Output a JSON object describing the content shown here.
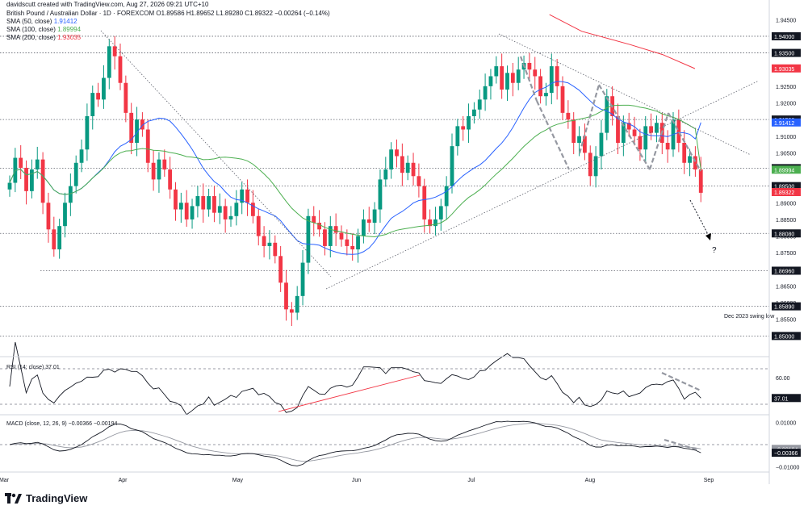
{
  "header": {
    "created": "davidscutt created with TradingView.com, Aug 27, 2026 09:21 UTC+10",
    "symbol": "British Pound / Australian Dollar · 1D · FOREXCOM",
    "ohlc": "O1.89586 H1.89652 L1.89280 C1.89322 −0.00264 (−0.14%)",
    "sma50_label": "SMA (50, close)",
    "sma50_value": "1.91412",
    "sma100_label": "SMA (100, close)",
    "sma100_value": "1.89994",
    "sma200_label": "SMA (200, close)",
    "sma200_value": "1.93035"
  },
  "brand": {
    "name": "TradingView"
  },
  "colors": {
    "up": "#089981",
    "down": "#f23645",
    "sma50": "#2962ff",
    "sma100": "#4caf50",
    "sma200": "#f23645",
    "rsi": "#131722",
    "macd": "#131722",
    "signal": "#9598a1"
  },
  "chart_data": {
    "type": "candlestick",
    "title": "British Pound / Australian Dollar · 1D · FOREXCOM",
    "ylim": [
      1.845,
      1.9475
    ],
    "y_ticks": [
      1.85,
      1.855,
      1.86,
      1.865,
      1.87,
      1.875,
      1.88,
      1.885,
      1.89,
      1.895,
      1.9,
      1.905,
      1.91,
      1.915,
      1.92,
      1.925,
      1.93,
      1.935,
      1.94,
      1.945
    ],
    "y_tick_labels": [
      "1.85000",
      "1.85500",
      "1.86000",
      "1.86500",
      "1.87000",
      "1.87500",
      "1.88000",
      "1.88500",
      "1.89000",
      "1.89500",
      "1.90000",
      "1.90500",
      "1.91000",
      "1.91500",
      "1.92000",
      "1.92500",
      "1.93000",
      "1.93500",
      "1.94000",
      "1.94500"
    ],
    "x_tick_labels": [
      {
        "label": "Mar",
        "date": "2026-03-01"
      },
      {
        "label": "Apr",
        "date": "2026-04-01"
      },
      {
        "label": "May",
        "date": "2026-05-01"
      },
      {
        "label": "Jun",
        "date": "2026-06-01"
      },
      {
        "label": "Jul",
        "date": "2026-07-01"
      },
      {
        "label": "Aug",
        "date": "2026-08-01"
      },
      {
        "label": "Sep",
        "date": "2026-09-01"
      }
    ],
    "x_range": [
      "2026-03-01",
      "2026-09-01"
    ],
    "close": [
      1.896,
      1.9035,
      1.9005,
      1.8935,
      1.9,
      1.903,
      1.89,
      1.882,
      1.876,
      1.883,
      1.89,
      1.895,
      1.902,
      1.906,
      1.916,
      1.923,
      1.921,
      1.9275,
      1.937,
      1.934,
      1.926,
      1.917,
      1.908,
      1.915,
      1.912,
      1.902,
      1.897,
      1.903,
      1.9,
      1.894,
      1.888,
      1.89,
      1.885,
      1.889,
      1.892,
      1.888,
      1.892,
      1.887,
      1.889,
      1.885,
      1.886,
      1.89,
      1.894,
      1.89,
      1.886,
      1.88,
      1.877,
      1.878,
      1.874,
      1.866,
      1.858,
      1.857,
      1.862,
      1.872,
      1.886,
      1.884,
      1.882,
      1.877,
      1.883,
      1.881,
      1.879,
      1.877,
      1.876,
      1.88,
      1.885,
      1.884,
      1.888,
      1.897,
      1.9,
      1.906,
      1.904,
      1.899,
      1.902,
      1.898,
      1.895,
      1.885,
      1.883,
      1.885,
      1.889,
      1.895,
      1.907,
      1.913,
      1.912,
      1.916,
      1.918,
      1.921,
      1.925,
      1.928,
      1.931,
      1.924,
      1.929,
      1.926,
      1.93,
      1.932,
      1.93,
      1.928,
      1.922,
      1.923,
      1.931,
      1.925,
      1.917,
      1.915,
      1.908,
      1.91,
      1.905,
      1.898,
      1.904,
      1.911,
      1.922,
      1.916,
      1.908,
      1.914,
      1.912,
      1.91,
      1.906,
      1.913,
      1.911,
      1.914,
      1.908,
      1.906,
      1.915,
      1.908,
      1.902,
      1.904,
      1.9,
      1.893
    ],
    "series": [
      {
        "name": "SMA (50, close)",
        "last": 1.91412
      },
      {
        "name": "SMA (100, close)",
        "last": 1.89994
      },
      {
        "name": "SMA (200, close)",
        "last": 1.93035
      }
    ],
    "sma200_points": [
      [
        0.68,
        1.9465
      ],
      [
        0.72,
        1.9415
      ],
      [
        0.78,
        1.9375
      ],
      [
        0.82,
        1.9345
      ],
      [
        0.86,
        1.9303
      ]
    ],
    "price_levels": [
      {
        "value": 1.94,
        "label": "1.94000"
      },
      {
        "value": 1.935,
        "label": "1.93500"
      },
      {
        "value": 1.915,
        "label": "1.91500"
      },
      {
        "value": 1.9004,
        "label": "1.90040"
      },
      {
        "value": 1.895,
        "label": "1.89500"
      },
      {
        "value": 1.8808,
        "label": "1.88080"
      },
      {
        "value": 1.8696,
        "label": "1.86960"
      },
      {
        "value": 1.8589,
        "label": "1.85890"
      },
      {
        "value": 1.85,
        "label": "1.85000"
      }
    ],
    "last_value_labels": [
      {
        "value": 1.93035,
        "label": "1.93035",
        "color": "#f23645"
      },
      {
        "value": 1.91412,
        "label": "1.91412",
        "color": "#2962ff"
      },
      {
        "value": 1.89994,
        "label": "1.89994",
        "color": "#4caf50"
      },
      {
        "value": 1.89322,
        "label": "1.89322",
        "color": "#f23645"
      }
    ],
    "annotations": {
      "swing_low": "Dec 2023 swing low",
      "question": "?"
    },
    "rsi": {
      "label": "RSI (14; close)",
      "value": "37.01",
      "levels": [
        70,
        30
      ],
      "tick": "60.00",
      "ylim": [
        20,
        80
      ]
    },
    "macd": {
      "label": "MACD (close, 12, 26, 9)",
      "macd_value": "−0.00366",
      "signal_value": "−0.00194",
      "ticks": [
        "0.01000",
        "−0.01000"
      ],
      "value_labels": [
        "−0.00194",
        "−0.00366"
      ]
    }
  }
}
